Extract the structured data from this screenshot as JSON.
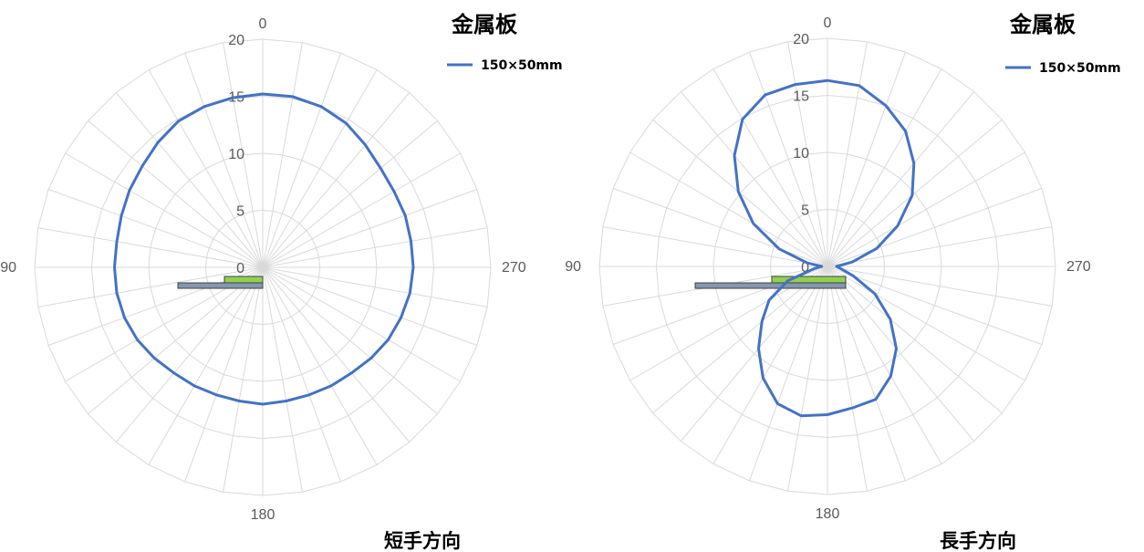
{
  "chart_data": [
    {
      "type": "radar",
      "title": "金属板",
      "caption": "短手方向",
      "radial_ticks": [
        "0",
        "5",
        "10",
        "15",
        "20"
      ],
      "rlim": [
        0,
        20
      ],
      "angle_labels": {
        "top": "0",
        "left": "90",
        "bottom": "180",
        "right": "270"
      },
      "angles_deg": [
        0,
        10,
        20,
        30,
        40,
        50,
        60,
        70,
        80,
        90,
        100,
        110,
        120,
        130,
        140,
        150,
        160,
        170,
        180,
        190,
        200,
        210,
        220,
        230,
        240,
        250,
        260,
        270,
        280,
        290,
        300,
        310,
        320,
        330,
        340,
        350
      ],
      "series": [
        {
          "name": "150×50mm",
          "color": "#4472C4",
          "values": [
            15.2,
            15.1,
            15.0,
            14.8,
            14.3,
            13.8,
            13.5,
            13.2,
            13.0,
            13.0,
            13.0,
            12.9,
            12.7,
            12.4,
            12.1,
            12.0,
            11.9,
            11.9,
            12.0,
            11.9,
            11.9,
            12.0,
            12.1,
            12.4,
            12.7,
            12.9,
            13.1,
            13.2,
            13.2,
            13.3,
            13.3,
            13.5,
            14.0,
            14.6,
            15.0,
            15.2
          ]
        }
      ]
    },
    {
      "type": "radar",
      "title": "金属板",
      "caption": "長手方向",
      "radial_ticks": [
        "0",
        "5",
        "10",
        "15",
        "20"
      ],
      "rlim": [
        0,
        20
      ],
      "angle_labels": {
        "top": "0",
        "left": "90",
        "bottom": "180",
        "right": "270"
      },
      "angles_deg": [
        0,
        10,
        20,
        30,
        40,
        50,
        60,
        70,
        80,
        90,
        100,
        110,
        120,
        130,
        140,
        150,
        160,
        170,
        180,
        190,
        200,
        210,
        220,
        230,
        240,
        250,
        260,
        270,
        280,
        290,
        300,
        310,
        320,
        330,
        340,
        350
      ],
      "series": [
        {
          "name": "150×50mm",
          "color": "#4472C4",
          "values": [
            16.3,
            16.2,
            16.0,
            14.9,
            12.7,
            10.2,
            7.5,
            4.5,
            1.8,
            0.5,
            1.2,
            3.7,
            5.9,
            7.5,
            9.4,
            11.3,
            12.8,
            13.3,
            13.0,
            12.6,
            12.4,
            11.1,
            9.4,
            7.2,
            4.8,
            2.4,
            1.2,
            0.8,
            2.2,
            4.6,
            7.1,
            9.7,
            11.8,
            13.7,
            15.0,
            16.1
          ]
        }
      ]
    }
  ]
}
